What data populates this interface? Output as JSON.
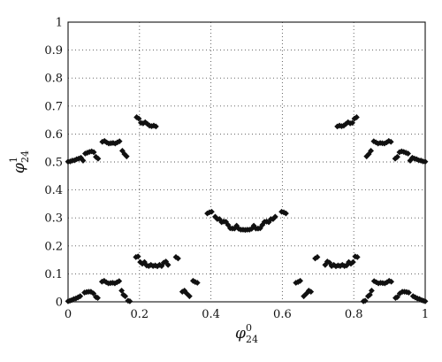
{
  "chart_data": {
    "type": "scatter",
    "title": "",
    "xlabel": {
      "base": "φ",
      "sup": "0",
      "sub": "24"
    },
    "ylabel": {
      "base": "φ",
      "sup": "1",
      "sub": "24"
    },
    "xlim": [
      0,
      1
    ],
    "ylim": [
      0,
      1
    ],
    "x_ticks": [
      0,
      0.2,
      0.4,
      0.6,
      0.8,
      1
    ],
    "x_tick_labels": [
      "0",
      "0.2",
      "0.4",
      "0.6",
      "0.8",
      "1"
    ],
    "y_ticks": [
      0,
      0.1,
      0.2,
      0.3,
      0.4,
      0.5,
      0.6,
      0.7,
      0.8,
      0.9,
      1
    ],
    "y_tick_labels": [
      "0",
      "0.1",
      "0.2",
      "0.3",
      "0.4",
      "0.5",
      "0.6",
      "0.7",
      "0.8",
      "0.9",
      "1"
    ],
    "grid": true,
    "grid_style": "dotted",
    "marker": "diamond",
    "marker_color": "#111111",
    "series": [
      {
        "points": [
          [
            0.0,
            0.002
          ],
          [
            0.005,
            0.004
          ],
          [
            0.01,
            0.006
          ],
          [
            0.016,
            0.01
          ],
          [
            0.022,
            0.012
          ],
          [
            0.028,
            0.016
          ],
          [
            0.034,
            0.02
          ],
          [
            0.046,
            0.033
          ],
          [
            0.052,
            0.035
          ],
          [
            0.058,
            0.036
          ],
          [
            0.064,
            0.036
          ],
          [
            0.071,
            0.03
          ],
          [
            0.078,
            0.017
          ],
          [
            0.083,
            0.014
          ],
          [
            0.095,
            0.072
          ],
          [
            0.101,
            0.075
          ],
          [
            0.107,
            0.07
          ],
          [
            0.113,
            0.066
          ],
          [
            0.119,
            0.067
          ],
          [
            0.125,
            0.068
          ],
          [
            0.131,
            0.066
          ],
          [
            0.137,
            0.07
          ],
          [
            0.143,
            0.074
          ],
          [
            0.15,
            0.04
          ],
          [
            0.155,
            0.025
          ],
          [
            0.16,
            0.02
          ],
          [
            0.168,
            0.004
          ],
          [
            0.173,
            0.002
          ],
          [
            0.19,
            0.16
          ],
          [
            0.196,
            0.162
          ],
          [
            0.202,
            0.142
          ],
          [
            0.208,
            0.136
          ],
          [
            0.214,
            0.142
          ],
          [
            0.22,
            0.13
          ],
          [
            0.226,
            0.128
          ],
          [
            0.232,
            0.132
          ],
          [
            0.238,
            0.128
          ],
          [
            0.244,
            0.13
          ],
          [
            0.25,
            0.127
          ],
          [
            0.256,
            0.132
          ],
          [
            0.262,
            0.128
          ],
          [
            0.268,
            0.14
          ],
          [
            0.274,
            0.144
          ],
          [
            0.28,
            0.132
          ],
          [
            0.302,
            0.16
          ],
          [
            0.308,
            0.155
          ],
          [
            0.32,
            0.036
          ],
          [
            0.326,
            0.04
          ],
          [
            0.332,
            0.03
          ],
          [
            0.34,
            0.02
          ],
          [
            0.35,
            0.075
          ],
          [
            0.356,
            0.071
          ],
          [
            0.362,
            0.068
          ],
          [
            0.39,
            0.316
          ],
          [
            0.396,
            0.32
          ],
          [
            0.402,
            0.322
          ],
          [
            0.412,
            0.304
          ],
          [
            0.418,
            0.296
          ],
          [
            0.424,
            0.296
          ],
          [
            0.43,
            0.285
          ],
          [
            0.436,
            0.287
          ],
          [
            0.442,
            0.286
          ],
          [
            0.448,
            0.275
          ],
          [
            0.454,
            0.263
          ],
          [
            0.46,
            0.262
          ],
          [
            0.466,
            0.262
          ],
          [
            0.472,
            0.272
          ],
          [
            0.478,
            0.261
          ],
          [
            0.484,
            0.258
          ],
          [
            0.49,
            0.258
          ],
          [
            0.496,
            0.257
          ],
          [
            0.502,
            0.258
          ],
          [
            0.508,
            0.258
          ],
          [
            0.514,
            0.261
          ],
          [
            0.52,
            0.272
          ],
          [
            0.526,
            0.262
          ],
          [
            0.532,
            0.262
          ],
          [
            0.538,
            0.263
          ],
          [
            0.544,
            0.275
          ],
          [
            0.55,
            0.286
          ],
          [
            0.556,
            0.287
          ],
          [
            0.562,
            0.285
          ],
          [
            0.568,
            0.296
          ],
          [
            0.574,
            0.296
          ],
          [
            0.58,
            0.304
          ],
          [
            0.598,
            0.322
          ],
          [
            0.604,
            0.32
          ],
          [
            0.61,
            0.316
          ],
          [
            0.638,
            0.068
          ],
          [
            0.644,
            0.071
          ],
          [
            0.65,
            0.075
          ],
          [
            0.66,
            0.02
          ],
          [
            0.668,
            0.03
          ],
          [
            0.674,
            0.04
          ],
          [
            0.68,
            0.036
          ],
          [
            0.692,
            0.155
          ],
          [
            0.698,
            0.16
          ],
          [
            0.72,
            0.132
          ],
          [
            0.726,
            0.144
          ],
          [
            0.732,
            0.14
          ],
          [
            0.738,
            0.128
          ],
          [
            0.744,
            0.132
          ],
          [
            0.75,
            0.127
          ],
          [
            0.756,
            0.13
          ],
          [
            0.762,
            0.128
          ],
          [
            0.768,
            0.132
          ],
          [
            0.774,
            0.128
          ],
          [
            0.78,
            0.13
          ],
          [
            0.786,
            0.142
          ],
          [
            0.792,
            0.136
          ],
          [
            0.798,
            0.142
          ],
          [
            0.804,
            0.162
          ],
          [
            0.81,
            0.16
          ],
          [
            0.827,
            0.002
          ],
          [
            0.832,
            0.004
          ],
          [
            0.84,
            0.02
          ],
          [
            0.845,
            0.025
          ],
          [
            0.85,
            0.04
          ],
          [
            0.857,
            0.074
          ],
          [
            0.863,
            0.07
          ],
          [
            0.869,
            0.066
          ],
          [
            0.875,
            0.068
          ],
          [
            0.881,
            0.067
          ],
          [
            0.887,
            0.066
          ],
          [
            0.893,
            0.07
          ],
          [
            0.899,
            0.075
          ],
          [
            0.905,
            0.072
          ],
          [
            0.917,
            0.014
          ],
          [
            0.922,
            0.017
          ],
          [
            0.929,
            0.03
          ],
          [
            0.936,
            0.036
          ],
          [
            0.942,
            0.036
          ],
          [
            0.948,
            0.035
          ],
          [
            0.954,
            0.033
          ],
          [
            0.966,
            0.02
          ],
          [
            0.972,
            0.016
          ],
          [
            0.978,
            0.012
          ],
          [
            0.984,
            0.01
          ],
          [
            0.99,
            0.006
          ],
          [
            0.995,
            0.004
          ],
          [
            1.0,
            0.002
          ],
          [
            0.0,
            0.501
          ],
          [
            0.006,
            0.502
          ],
          [
            0.012,
            0.505
          ],
          [
            0.018,
            0.506
          ],
          [
            0.024,
            0.51
          ],
          [
            0.03,
            0.512
          ],
          [
            0.036,
            0.515
          ],
          [
            0.042,
            0.505
          ],
          [
            0.048,
            0.53
          ],
          [
            0.054,
            0.533
          ],
          [
            0.06,
            0.536
          ],
          [
            0.066,
            0.538
          ],
          [
            0.072,
            0.535
          ],
          [
            0.078,
            0.518
          ],
          [
            0.084,
            0.512
          ],
          [
            0.096,
            0.572
          ],
          [
            0.102,
            0.575
          ],
          [
            0.108,
            0.57
          ],
          [
            0.114,
            0.566
          ],
          [
            0.12,
            0.567
          ],
          [
            0.126,
            0.568
          ],
          [
            0.132,
            0.566
          ],
          [
            0.138,
            0.57
          ],
          [
            0.144,
            0.574
          ],
          [
            0.152,
            0.54
          ],
          [
            0.158,
            0.528
          ],
          [
            0.164,
            0.52
          ],
          [
            0.192,
            0.66
          ],
          [
            0.198,
            0.655
          ],
          [
            0.204,
            0.64
          ],
          [
            0.21,
            0.638
          ],
          [
            0.216,
            0.642
          ],
          [
            0.222,
            0.636
          ],
          [
            0.228,
            0.63
          ],
          [
            0.234,
            0.628
          ],
          [
            0.24,
            0.63
          ],
          [
            0.246,
            0.627
          ],
          [
            0.754,
            0.627
          ],
          [
            0.76,
            0.63
          ],
          [
            0.766,
            0.628
          ],
          [
            0.772,
            0.63
          ],
          [
            0.778,
            0.636
          ],
          [
            0.784,
            0.642
          ],
          [
            0.79,
            0.638
          ],
          [
            0.796,
            0.64
          ],
          [
            0.802,
            0.655
          ],
          [
            0.808,
            0.66
          ],
          [
            0.836,
            0.52
          ],
          [
            0.842,
            0.528
          ],
          [
            0.848,
            0.54
          ],
          [
            0.856,
            0.574
          ],
          [
            0.862,
            0.57
          ],
          [
            0.868,
            0.566
          ],
          [
            0.874,
            0.568
          ],
          [
            0.88,
            0.567
          ],
          [
            0.886,
            0.566
          ],
          [
            0.892,
            0.57
          ],
          [
            0.898,
            0.575
          ],
          [
            0.904,
            0.572
          ],
          [
            0.916,
            0.512
          ],
          [
            0.922,
            0.518
          ],
          [
            0.928,
            0.535
          ],
          [
            0.934,
            0.538
          ],
          [
            0.94,
            0.536
          ],
          [
            0.946,
            0.533
          ],
          [
            0.952,
            0.53
          ],
          [
            0.958,
            0.505
          ],
          [
            0.964,
            0.515
          ],
          [
            0.97,
            0.512
          ],
          [
            0.976,
            0.51
          ],
          [
            0.982,
            0.506
          ],
          [
            0.988,
            0.505
          ],
          [
            0.994,
            0.502
          ],
          [
            1.0,
            0.501
          ]
        ]
      }
    ]
  }
}
